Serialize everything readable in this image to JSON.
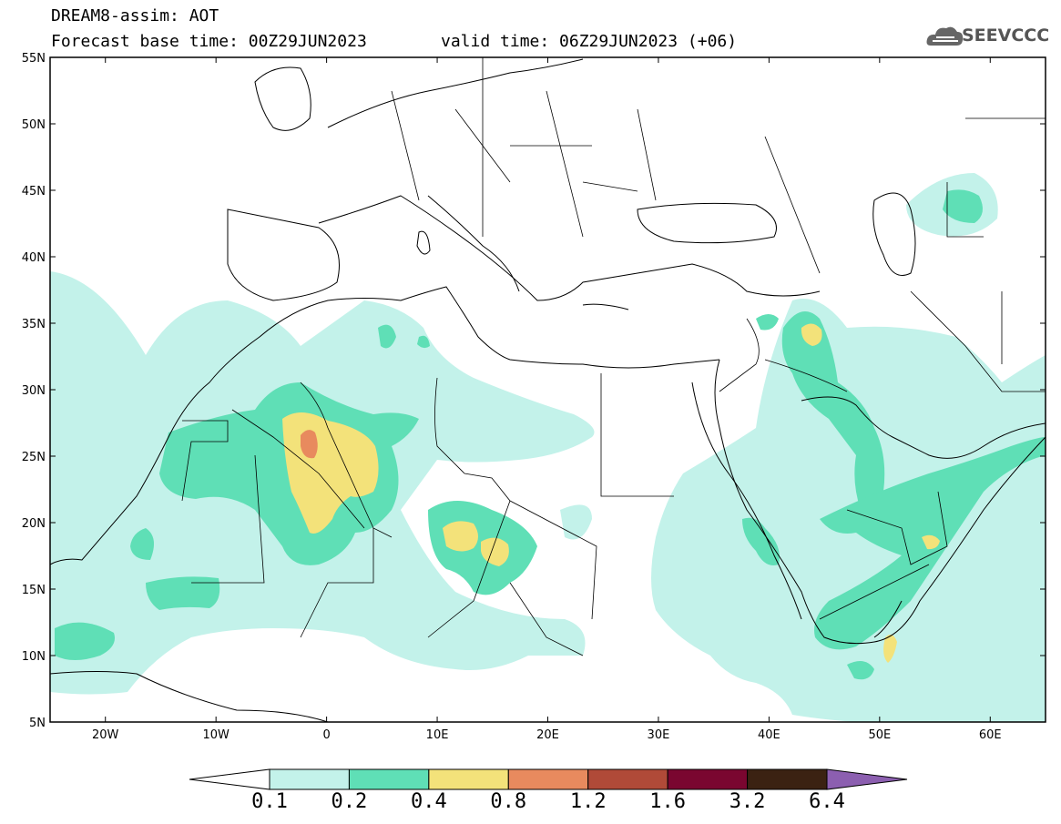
{
  "header": {
    "title": "DREAM8-assim: AOT",
    "base_time": "Forecast base time: 00Z29JUN2023",
    "valid_time": "valid time: 06Z29JUN2023 (+06)"
  },
  "logo": {
    "text": "SEEVCCC",
    "icon": "cloud-logo-icon"
  },
  "map": {
    "projection": "cylindrical lat-lon",
    "lon_range": [
      -25,
      65
    ],
    "lat_range": [
      5,
      55
    ],
    "lat_labels": [
      "55N",
      "50N",
      "45N",
      "40N",
      "35N",
      "30N",
      "25N",
      "20N",
      "15N",
      "10N",
      "5N"
    ],
    "lon_labels": [
      "20W",
      "10W",
      "0",
      "10E",
      "20E",
      "30E",
      "40E",
      "50E",
      "60E"
    ],
    "features": [
      "coastlines",
      "country-borders",
      "aot-filled-contours"
    ]
  },
  "colorbar": {
    "levels": [
      "0.1",
      "0.2",
      "0.4",
      "0.8",
      "1.2",
      "1.6",
      "3.2",
      "6.4"
    ],
    "colors": [
      "#ffffff",
      "#c3f2ea",
      "#5fdfb6",
      "#f3e27a",
      "#e88a5e",
      "#b04a38",
      "#7a0630",
      "#3b2212",
      "#8c5fb0"
    ]
  }
}
